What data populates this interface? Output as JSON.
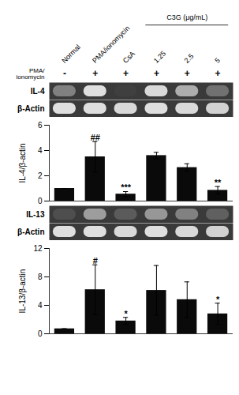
{
  "chart_data": [
    {
      "type": "gel",
      "categories": [
        "Normal",
        "PMA/ionomycin",
        "CsA",
        "1.25",
        "2.5",
        "5"
      ],
      "annotations": [
        {
          "text": "C3G (μg/mL)",
          "categories": [
            "1.25",
            "2.5",
            "5"
          ]
        }
      ],
      "rows": [
        {
          "name": "PMA/\nionomycin",
          "labels": [
            "-",
            "+",
            "+",
            "+",
            "+",
            "+"
          ]
        }
      ],
      "lanes": [
        {
          "name": "IL-4",
          "intensities": [
            0.45,
            0.88,
            0.15,
            0.85,
            0.65,
            0.38
          ]
        },
        {
          "name": "β-Actin",
          "intensities": [
            0.88,
            0.88,
            0.85,
            0.88,
            0.85,
            0.82
          ]
        }
      ]
    },
    {
      "type": "bar",
      "categories": [
        "Normal",
        "PMA/ionomycin",
        "CsA",
        "1.25",
        "2.5",
        "5"
      ],
      "values": [
        1.0,
        3.5,
        0.55,
        3.6,
        2.65,
        0.85
      ],
      "errors": [
        0.0,
        1.2,
        0.2,
        0.25,
        0.3,
        0.3
      ],
      "ylim": [
        0,
        6
      ],
      "yticks": [
        0,
        2,
        4,
        6
      ],
      "ylabel": "IL-4/β-actin",
      "color": "#0a0a0a",
      "tick_labels": "y",
      "annotations": [
        {
          "category": "PMA/ionomycin",
          "text": "##",
          "y": 4.78
        },
        {
          "category": "CsA",
          "text": "***",
          "y": 0.83
        },
        {
          "category": "5",
          "text": "**",
          "y": 1.23
        }
      ]
    },
    {
      "type": "gel",
      "lanes": [
        {
          "name": "IL-13",
          "intensities": [
            0.22,
            0.58,
            0.28,
            0.55,
            0.45,
            0.3
          ]
        },
        {
          "name": "β-Actin",
          "intensities": [
            0.88,
            0.88,
            0.85,
            0.88,
            0.85,
            0.82
          ]
        }
      ]
    },
    {
      "type": "bar",
      "categories": [
        "Normal",
        "PMA/ionomycin",
        "CsA",
        "1.25",
        "2.5",
        "5"
      ],
      "values": [
        0.7,
        6.2,
        1.8,
        6.1,
        4.8,
        2.8
      ],
      "errors": [
        0.0,
        3.5,
        0.5,
        3.5,
        2.5,
        1.5
      ],
      "ylim": [
        0,
        12
      ],
      "yticks": [
        0,
        4,
        8,
        12
      ],
      "ylabel": "IL-13/β-actin",
      "color": "#0a0a0a",
      "tick_labels": "y",
      "annotations": [
        {
          "category": "PMA/ionomycin",
          "text": "#",
          "y": 9.8
        },
        {
          "category": "CsA",
          "text": "*",
          "y": 2.4
        },
        {
          "category": "5",
          "text": "*",
          "y": 4.4
        }
      ]
    }
  ]
}
